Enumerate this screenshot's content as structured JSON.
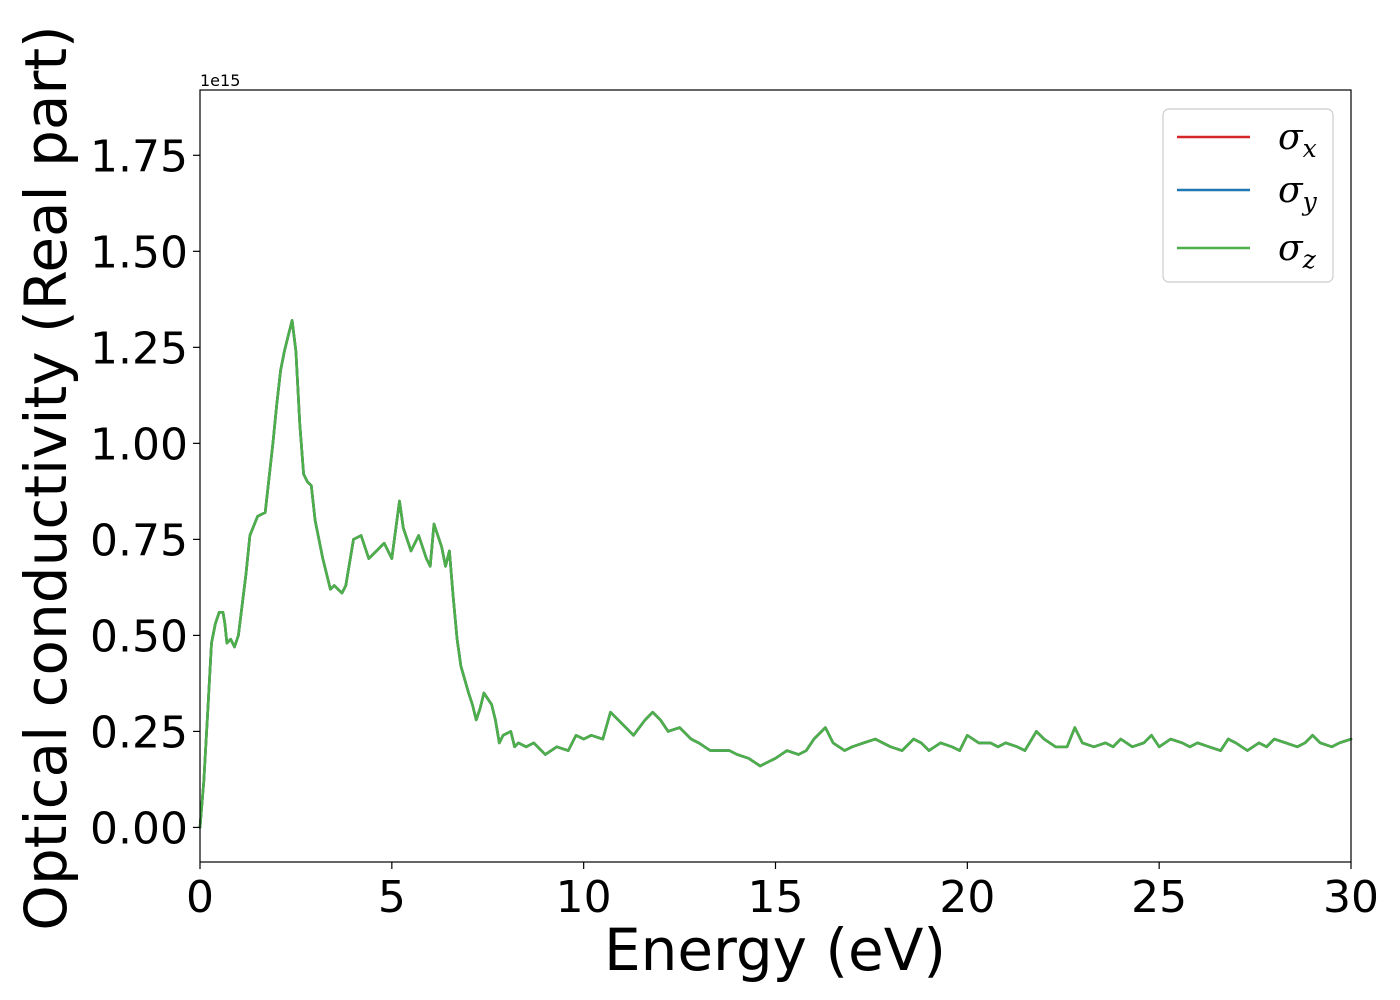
{
  "chart_data": {
    "type": "line",
    "title": "",
    "xlabel": "Energy (eV)",
    "ylabel": "Optical conductivity (Real part)",
    "y_offset_label": "1e15",
    "xlim": [
      0,
      30
    ],
    "ylim": [
      -0.09,
      1.92
    ],
    "xticks": [
      0,
      5,
      10,
      15,
      20,
      25,
      30
    ],
    "xtick_labels": [
      "0",
      "5",
      "10",
      "15",
      "20",
      "25",
      "30"
    ],
    "yticks": [
      0.0,
      0.25,
      0.5,
      0.75,
      1.0,
      1.25,
      1.5,
      1.75
    ],
    "ytick_labels": [
      "0.00",
      "0.25",
      "0.50",
      "0.75",
      "1.00",
      "1.25",
      "1.50",
      "1.75"
    ],
    "grid": false,
    "legend_position": "top-right",
    "x": [
      0,
      0.1,
      0.2,
      0.3,
      0.4,
      0.5,
      0.6,
      0.65,
      0.7,
      0.8,
      0.9,
      1.0,
      1.1,
      1.2,
      1.3,
      1.5,
      1.7,
      1.9,
      2.0,
      2.1,
      2.2,
      2.3,
      2.4,
      2.5,
      2.6,
      2.7,
      2.8,
      2.9,
      3.0,
      3.2,
      3.4,
      3.5,
      3.6,
      3.7,
      3.8,
      4.0,
      4.2,
      4.4,
      4.6,
      4.8,
      5.0,
      5.2,
      5.3,
      5.5,
      5.7,
      5.9,
      6.0,
      6.1,
      6.3,
      6.4,
      6.5,
      6.6,
      6.7,
      6.8,
      7.0,
      7.1,
      7.2,
      7.3,
      7.4,
      7.6,
      7.7,
      7.8,
      7.9,
      8.1,
      8.2,
      8.3,
      8.5,
      8.7,
      9.0,
      9.3,
      9.6,
      9.8,
      10.0,
      10.2,
      10.5,
      10.7,
      11.0,
      11.3,
      11.6,
      11.8,
      12.0,
      12.2,
      12.5,
      12.8,
      13.0,
      13.3,
      13.6,
      13.8,
      14.0,
      14.3,
      14.6,
      14.8,
      15.0,
      15.3,
      15.6,
      15.8,
      16.0,
      16.3,
      16.5,
      16.8,
      17.0,
      17.3,
      17.6,
      17.8,
      18.0,
      18.3,
      18.6,
      18.8,
      19.0,
      19.3,
      19.6,
      19.8,
      20.0,
      20.3,
      20.6,
      20.8,
      21.0,
      21.3,
      21.5,
      21.8,
      22.0,
      22.3,
      22.6,
      22.8,
      23.0,
      23.3,
      23.6,
      23.8,
      24.0,
      24.3,
      24.6,
      24.8,
      25.0,
      25.3,
      25.6,
      25.8,
      26.0,
      26.3,
      26.6,
      26.8,
      27.0,
      27.3,
      27.6,
      27.8,
      28.0,
      28.3,
      28.6,
      28.8,
      29.0,
      29.2,
      29.5,
      29.7,
      30.0
    ],
    "series": [
      {
        "name": "σ_x",
        "color": "#d62728",
        "values": [
          0.0,
          0.12,
          0.3,
          0.48,
          0.53,
          0.56,
          0.56,
          0.53,
          0.48,
          0.49,
          0.47,
          0.5,
          0.58,
          0.66,
          0.76,
          0.81,
          0.82,
          1.0,
          1.1,
          1.19,
          1.24,
          1.28,
          1.32,
          1.24,
          1.05,
          0.92,
          0.9,
          0.89,
          0.8,
          0.7,
          0.62,
          0.63,
          0.62,
          0.61,
          0.63,
          0.75,
          0.76,
          0.7,
          0.72,
          0.74,
          0.7,
          0.85,
          0.78,
          0.72,
          0.76,
          0.7,
          0.68,
          0.79,
          0.73,
          0.68,
          0.72,
          0.6,
          0.49,
          0.42,
          0.35,
          0.32,
          0.28,
          0.31,
          0.35,
          0.32,
          0.28,
          0.22,
          0.24,
          0.25,
          0.21,
          0.22,
          0.21,
          0.22,
          0.19,
          0.21,
          0.2,
          0.24,
          0.23,
          0.24,
          0.23,
          0.3,
          0.27,
          0.24,
          0.28,
          0.3,
          0.28,
          0.25,
          0.26,
          0.23,
          0.22,
          0.2,
          0.2,
          0.2,
          0.19,
          0.18,
          0.16,
          0.17,
          0.18,
          0.2,
          0.19,
          0.2,
          0.23,
          0.26,
          0.22,
          0.2,
          0.21,
          0.22,
          0.23,
          0.22,
          0.21,
          0.2,
          0.23,
          0.22,
          0.2,
          0.22,
          0.21,
          0.2,
          0.24,
          0.22,
          0.22,
          0.21,
          0.22,
          0.21,
          0.2,
          0.25,
          0.23,
          0.21,
          0.21,
          0.26,
          0.22,
          0.21,
          0.22,
          0.21,
          0.23,
          0.21,
          0.22,
          0.24,
          0.21,
          0.23,
          0.22,
          0.21,
          0.22,
          0.21,
          0.2,
          0.23,
          0.22,
          0.2,
          0.22,
          0.21,
          0.23,
          0.22,
          0.21,
          0.22,
          0.24,
          0.22,
          0.21,
          0.22,
          0.23
        ]
      },
      {
        "name": "σ_y",
        "color": "#1f77b4",
        "values": [
          0.0,
          0.12,
          0.3,
          0.48,
          0.53,
          0.56,
          0.56,
          0.53,
          0.48,
          0.49,
          0.47,
          0.5,
          0.58,
          0.66,
          0.76,
          0.81,
          0.82,
          1.0,
          1.1,
          1.19,
          1.24,
          1.28,
          1.32,
          1.24,
          1.05,
          0.92,
          0.9,
          0.89,
          0.8,
          0.7,
          0.62,
          0.63,
          0.62,
          0.61,
          0.63,
          0.75,
          0.76,
          0.7,
          0.72,
          0.74,
          0.7,
          0.85,
          0.78,
          0.72,
          0.76,
          0.7,
          0.68,
          0.79,
          0.73,
          0.68,
          0.72,
          0.6,
          0.49,
          0.42,
          0.35,
          0.32,
          0.28,
          0.31,
          0.35,
          0.32,
          0.28,
          0.22,
          0.24,
          0.25,
          0.21,
          0.22,
          0.21,
          0.22,
          0.19,
          0.21,
          0.2,
          0.24,
          0.23,
          0.24,
          0.23,
          0.3,
          0.27,
          0.24,
          0.28,
          0.3,
          0.28,
          0.25,
          0.26,
          0.23,
          0.22,
          0.2,
          0.2,
          0.2,
          0.19,
          0.18,
          0.16,
          0.17,
          0.18,
          0.2,
          0.19,
          0.2,
          0.23,
          0.26,
          0.22,
          0.2,
          0.21,
          0.22,
          0.23,
          0.22,
          0.21,
          0.2,
          0.23,
          0.22,
          0.2,
          0.22,
          0.21,
          0.2,
          0.24,
          0.22,
          0.22,
          0.21,
          0.22,
          0.21,
          0.2,
          0.25,
          0.23,
          0.21,
          0.21,
          0.26,
          0.22,
          0.21,
          0.22,
          0.21,
          0.23,
          0.21,
          0.22,
          0.24,
          0.21,
          0.23,
          0.22,
          0.21,
          0.22,
          0.21,
          0.2,
          0.23,
          0.22,
          0.2,
          0.22,
          0.21,
          0.23,
          0.22,
          0.21,
          0.22,
          0.24,
          0.22,
          0.21,
          0.22,
          0.23
        ]
      },
      {
        "name": "σ_z",
        "color": "#4daf4a",
        "values": [
          0.0,
          0.12,
          0.3,
          0.48,
          0.53,
          0.56,
          0.56,
          0.53,
          0.48,
          0.49,
          0.47,
          0.5,
          0.58,
          0.66,
          0.76,
          0.81,
          0.82,
          1.0,
          1.1,
          1.19,
          1.24,
          1.28,
          1.32,
          1.24,
          1.05,
          0.92,
          0.9,
          0.89,
          0.8,
          0.7,
          0.62,
          0.63,
          0.62,
          0.61,
          0.63,
          0.75,
          0.76,
          0.7,
          0.72,
          0.74,
          0.7,
          0.85,
          0.78,
          0.72,
          0.76,
          0.7,
          0.68,
          0.79,
          0.73,
          0.68,
          0.72,
          0.6,
          0.49,
          0.42,
          0.35,
          0.32,
          0.28,
          0.31,
          0.35,
          0.32,
          0.28,
          0.22,
          0.24,
          0.25,
          0.21,
          0.22,
          0.21,
          0.22,
          0.19,
          0.21,
          0.2,
          0.24,
          0.23,
          0.24,
          0.23,
          0.3,
          0.27,
          0.24,
          0.28,
          0.3,
          0.28,
          0.25,
          0.26,
          0.23,
          0.22,
          0.2,
          0.2,
          0.2,
          0.19,
          0.18,
          0.16,
          0.17,
          0.18,
          0.2,
          0.19,
          0.2,
          0.23,
          0.26,
          0.22,
          0.2,
          0.21,
          0.22,
          0.23,
          0.22,
          0.21,
          0.2,
          0.23,
          0.22,
          0.2,
          0.22,
          0.21,
          0.2,
          0.24,
          0.22,
          0.22,
          0.21,
          0.22,
          0.21,
          0.2,
          0.25,
          0.23,
          0.21,
          0.21,
          0.26,
          0.22,
          0.21,
          0.22,
          0.21,
          0.23,
          0.21,
          0.22,
          0.24,
          0.21,
          0.23,
          0.22,
          0.21,
          0.22,
          0.21,
          0.2,
          0.23,
          0.22,
          0.2,
          0.22,
          0.21,
          0.23,
          0.22,
          0.21,
          0.22,
          0.24,
          0.22,
          0.21,
          0.22,
          0.23
        ]
      }
    ],
    "legend": [
      {
        "symbol": "σ",
        "subscript": "x",
        "color": "#d62728"
      },
      {
        "symbol": "σ",
        "subscript": "y",
        "color": "#1f77b4"
      },
      {
        "symbol": "σ",
        "subscript": "z",
        "color": "#4daf4a"
      }
    ]
  }
}
